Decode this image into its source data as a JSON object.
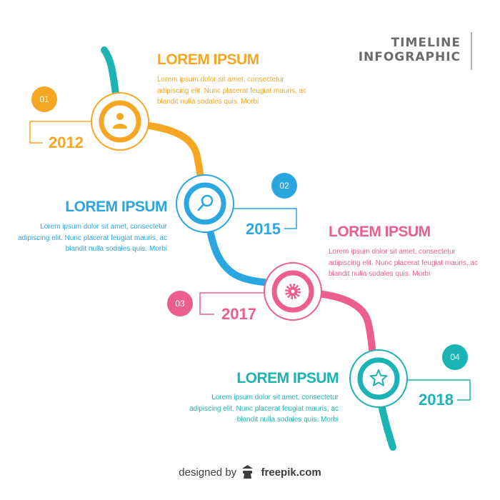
{
  "title": {
    "line1": "TIMELINE",
    "line2": "INFOGRAPHIC"
  },
  "colors": {
    "orange": "#f5a623",
    "blue": "#2aa6e0",
    "pink": "#ec5e8d",
    "teal": "#1bb3b3"
  },
  "steps": [
    {
      "number": "01",
      "year": "2012",
      "heading": "LOREM IPSUM",
      "body": "Lorem ipsum dolor sit amet, consectetur adipiscing elit. Nunc placerat feugiat mauris, ac blandit nulla sodales quis. Morbi",
      "icon": "user-icon"
    },
    {
      "number": "02",
      "year": "2015",
      "heading": "LOREM IPSUM",
      "body": "Lorem ipsum dolor sit amet, consectetur adipiscing elit. Nunc placerat feugiat mauris, ac blandit nulla sodales quis. Morbi",
      "icon": "search-icon"
    },
    {
      "number": "03",
      "year": "2017",
      "heading": "LOREM IPSUM",
      "body": "Lorem ipsum dolor sit amet, consectetur adipiscing elit. Nunc placerat feugiat mauris, ac blandit nulla sodales quis. Morbi",
      "icon": "gear-icon"
    },
    {
      "number": "04",
      "year": "2018",
      "heading": "LOREM IPSUM",
      "body": "Lorem ipsum dolor sit amet, consectetur adipiscing elit. Nunc placerat feugiat mauris, ac blandit nulla sodales quis. Morbi",
      "icon": "star-icon"
    }
  ],
  "credit": {
    "prefix": "designed by",
    "brand": "freepik.com"
  }
}
